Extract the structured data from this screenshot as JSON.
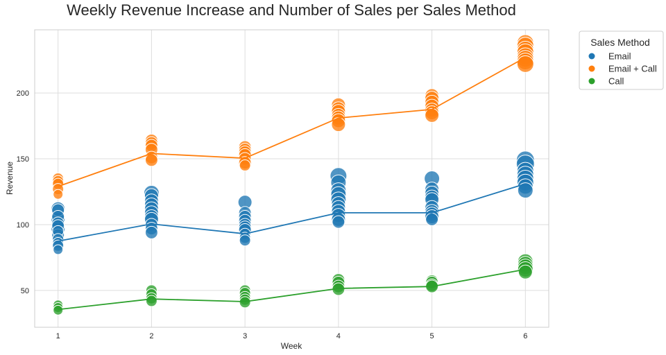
{
  "chart_data": {
    "type": "scatter",
    "title": "Weekly Revenue Increase and Number of Sales per Sales Method",
    "xlabel": "Week",
    "ylabel": "Revenue",
    "x_ticks": [
      1,
      2,
      3,
      4,
      5,
      6
    ],
    "y_ticks": [
      50,
      100,
      150,
      200
    ],
    "xlim": [
      0.75,
      6.25
    ],
    "ylim": [
      22,
      248
    ],
    "grid": true,
    "legend": {
      "title": "Sales Method",
      "placement": "outside-top-right"
    },
    "series": [
      {
        "name": "Email",
        "color": "#1f77b4",
        "line": [
          {
            "x": 1,
            "y": 87.5
          },
          {
            "x": 2,
            "y": 100.5
          },
          {
            "x": 3,
            "y": 93
          },
          {
            "x": 4,
            "y": 109
          },
          {
            "x": 5,
            "y": 109
          },
          {
            "x": 6,
            "y": 131
          }
        ],
        "points": [
          {
            "x": 1,
            "y": 112,
            "size": 10
          },
          {
            "x": 1,
            "y": 111,
            "size": 9
          },
          {
            "x": 1,
            "y": 106,
            "size": 9
          },
          {
            "x": 1,
            "y": 104,
            "size": 10
          },
          {
            "x": 1,
            "y": 101,
            "size": 9
          },
          {
            "x": 1,
            "y": 99,
            "size": 9
          },
          {
            "x": 1,
            "y": 97,
            "size": 10
          },
          {
            "x": 1,
            "y": 95,
            "size": 8
          },
          {
            "x": 1,
            "y": 92,
            "size": 9
          },
          {
            "x": 1,
            "y": 89,
            "size": 8
          },
          {
            "x": 1,
            "y": 86,
            "size": 8
          },
          {
            "x": 1,
            "y": 84,
            "size": 8
          },
          {
            "x": 1,
            "y": 81,
            "size": 7
          },
          {
            "x": 2,
            "y": 124,
            "size": 11
          },
          {
            "x": 2,
            "y": 122,
            "size": 10
          },
          {
            "x": 2,
            "y": 118,
            "size": 10
          },
          {
            "x": 2,
            "y": 115,
            "size": 10
          },
          {
            "x": 2,
            "y": 112,
            "size": 10
          },
          {
            "x": 2,
            "y": 109,
            "size": 10
          },
          {
            "x": 2,
            "y": 106,
            "size": 10
          },
          {
            "x": 2,
            "y": 104,
            "size": 10
          },
          {
            "x": 2,
            "y": 100,
            "size": 9
          },
          {
            "x": 2,
            "y": 97,
            "size": 9
          },
          {
            "x": 2,
            "y": 94,
            "size": 9
          },
          {
            "x": 3,
            "y": 117,
            "size": 10
          },
          {
            "x": 3,
            "y": 109,
            "size": 9
          },
          {
            "x": 3,
            "y": 106,
            "size": 9
          },
          {
            "x": 3,
            "y": 103,
            "size": 9
          },
          {
            "x": 3,
            "y": 100,
            "size": 9
          },
          {
            "x": 3,
            "y": 98,
            "size": 9
          },
          {
            "x": 3,
            "y": 96,
            "size": 9
          },
          {
            "x": 3,
            "y": 93,
            "size": 8
          },
          {
            "x": 3,
            "y": 90,
            "size": 8
          },
          {
            "x": 3,
            "y": 88,
            "size": 8
          },
          {
            "x": 4,
            "y": 137,
            "size": 12
          },
          {
            "x": 4,
            "y": 132,
            "size": 11
          },
          {
            "x": 4,
            "y": 126,
            "size": 11
          },
          {
            "x": 4,
            "y": 123,
            "size": 11
          },
          {
            "x": 4,
            "y": 119,
            "size": 11
          },
          {
            "x": 4,
            "y": 116,
            "size": 10
          },
          {
            "x": 4,
            "y": 113,
            "size": 10
          },
          {
            "x": 4,
            "y": 110,
            "size": 10
          },
          {
            "x": 4,
            "y": 107,
            "size": 10
          },
          {
            "x": 4,
            "y": 104,
            "size": 10
          },
          {
            "x": 4,
            "y": 102,
            "size": 9
          },
          {
            "x": 5,
            "y": 135,
            "size": 11
          },
          {
            "x": 5,
            "y": 127,
            "size": 10
          },
          {
            "x": 5,
            "y": 124,
            "size": 10
          },
          {
            "x": 5,
            "y": 121,
            "size": 10
          },
          {
            "x": 5,
            "y": 119,
            "size": 10
          },
          {
            "x": 5,
            "y": 113,
            "size": 10
          },
          {
            "x": 5,
            "y": 110,
            "size": 10
          },
          {
            "x": 5,
            "y": 108,
            "size": 10
          },
          {
            "x": 5,
            "y": 106,
            "size": 10
          },
          {
            "x": 5,
            "y": 104,
            "size": 9
          },
          {
            "x": 6,
            "y": 149,
            "size": 13
          },
          {
            "x": 6,
            "y": 146,
            "size": 13
          },
          {
            "x": 6,
            "y": 141,
            "size": 12
          },
          {
            "x": 6,
            "y": 138,
            "size": 12
          },
          {
            "x": 6,
            "y": 135,
            "size": 12
          },
          {
            "x": 6,
            "y": 132,
            "size": 12
          },
          {
            "x": 6,
            "y": 129,
            "size": 11
          },
          {
            "x": 6,
            "y": 126,
            "size": 11
          }
        ]
      },
      {
        "name": "Email + Call",
        "color": "#ff7f0e",
        "line": [
          {
            "x": 1,
            "y": 129
          },
          {
            "x": 2,
            "y": 154
          },
          {
            "x": 3,
            "y": 150.5
          },
          {
            "x": 4,
            "y": 181
          },
          {
            "x": 5,
            "y": 187.5
          },
          {
            "x": 6,
            "y": 227
          }
        ],
        "points": [
          {
            "x": 1,
            "y": 135,
            "size": 8
          },
          {
            "x": 1,
            "y": 133,
            "size": 8
          },
          {
            "x": 1,
            "y": 131,
            "size": 8
          },
          {
            "x": 1,
            "y": 127,
            "size": 8
          },
          {
            "x": 1,
            "y": 123,
            "size": 7
          },
          {
            "x": 2,
            "y": 164,
            "size": 9
          },
          {
            "x": 2,
            "y": 162,
            "size": 9
          },
          {
            "x": 2,
            "y": 160,
            "size": 9
          },
          {
            "x": 2,
            "y": 157,
            "size": 9
          },
          {
            "x": 2,
            "y": 151,
            "size": 9
          },
          {
            "x": 2,
            "y": 149,
            "size": 9
          },
          {
            "x": 3,
            "y": 159,
            "size": 9
          },
          {
            "x": 3,
            "y": 157,
            "size": 9
          },
          {
            "x": 3,
            "y": 155,
            "size": 9
          },
          {
            "x": 3,
            "y": 153,
            "size": 9
          },
          {
            "x": 3,
            "y": 150,
            "size": 9
          },
          {
            "x": 3,
            "y": 147,
            "size": 9
          },
          {
            "x": 3,
            "y": 145,
            "size": 8
          },
          {
            "x": 4,
            "y": 191,
            "size": 10
          },
          {
            "x": 4,
            "y": 188,
            "size": 10
          },
          {
            "x": 4,
            "y": 186,
            "size": 10
          },
          {
            "x": 4,
            "y": 183,
            "size": 10
          },
          {
            "x": 4,
            "y": 181,
            "size": 10
          },
          {
            "x": 4,
            "y": 179,
            "size": 10
          },
          {
            "x": 4,
            "y": 176,
            "size": 10
          },
          {
            "x": 5,
            "y": 198,
            "size": 10
          },
          {
            "x": 5,
            "y": 196,
            "size": 10
          },
          {
            "x": 5,
            "y": 193,
            "size": 10
          },
          {
            "x": 5,
            "y": 190,
            "size": 10
          },
          {
            "x": 5,
            "y": 187,
            "size": 10
          },
          {
            "x": 5,
            "y": 185,
            "size": 10
          },
          {
            "x": 5,
            "y": 183,
            "size": 10
          },
          {
            "x": 6,
            "y": 238,
            "size": 12
          },
          {
            "x": 6,
            "y": 236,
            "size": 12
          },
          {
            "x": 6,
            "y": 233,
            "size": 12
          },
          {
            "x": 6,
            "y": 231,
            "size": 12
          },
          {
            "x": 6,
            "y": 228,
            "size": 12
          },
          {
            "x": 6,
            "y": 226,
            "size": 12
          },
          {
            "x": 6,
            "y": 224,
            "size": 12
          },
          {
            "x": 6,
            "y": 222,
            "size": 12
          }
        ]
      },
      {
        "name": "Call",
        "color": "#2ca02c",
        "line": [
          {
            "x": 1,
            "y": 35.5
          },
          {
            "x": 2,
            "y": 43.5
          },
          {
            "x": 3,
            "y": 41.5
          },
          {
            "x": 4,
            "y": 51.5
          },
          {
            "x": 5,
            "y": 53
          },
          {
            "x": 6,
            "y": 66
          }
        ],
        "points": [
          {
            "x": 1,
            "y": 39,
            "size": 7
          },
          {
            "x": 1,
            "y": 37,
            "size": 7
          },
          {
            "x": 1,
            "y": 35,
            "size": 7
          },
          {
            "x": 2,
            "y": 50,
            "size": 8
          },
          {
            "x": 2,
            "y": 47,
            "size": 8
          },
          {
            "x": 2,
            "y": 44,
            "size": 8
          },
          {
            "x": 2,
            "y": 42,
            "size": 8
          },
          {
            "x": 3,
            "y": 50,
            "size": 8
          },
          {
            "x": 3,
            "y": 48,
            "size": 8
          },
          {
            "x": 3,
            "y": 45,
            "size": 8
          },
          {
            "x": 3,
            "y": 43,
            "size": 8
          },
          {
            "x": 3,
            "y": 41,
            "size": 8
          },
          {
            "x": 4,
            "y": 58,
            "size": 9
          },
          {
            "x": 4,
            "y": 56,
            "size": 9
          },
          {
            "x": 4,
            "y": 53,
            "size": 9
          },
          {
            "x": 4,
            "y": 51,
            "size": 9
          },
          {
            "x": 5,
            "y": 57,
            "size": 9
          },
          {
            "x": 5,
            "y": 56,
            "size": 9
          },
          {
            "x": 5,
            "y": 54,
            "size": 9
          },
          {
            "x": 5,
            "y": 53,
            "size": 9
          },
          {
            "x": 6,
            "y": 72,
            "size": 11
          },
          {
            "x": 6,
            "y": 70,
            "size": 11
          },
          {
            "x": 6,
            "y": 68,
            "size": 11
          },
          {
            "x": 6,
            "y": 66,
            "size": 11
          },
          {
            "x": 6,
            "y": 64,
            "size": 10
          }
        ]
      }
    ]
  }
}
